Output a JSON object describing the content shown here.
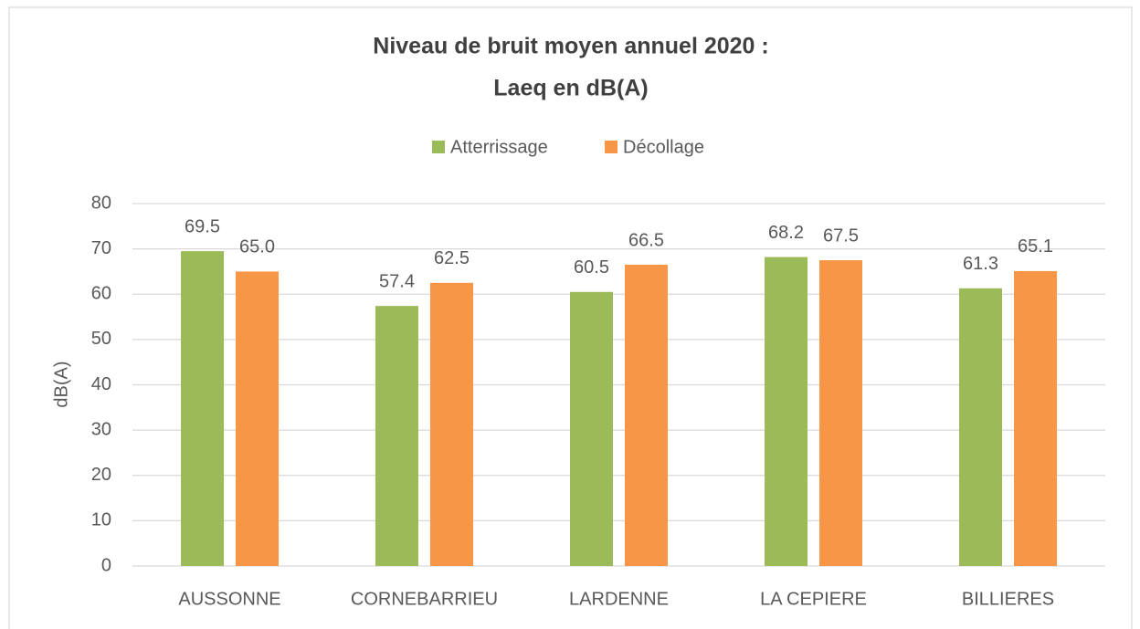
{
  "chart_data": {
    "type": "bar",
    "title": [
      "Niveau de bruit moyen annuel 2020 :",
      "Laeq en dB(A)"
    ],
    "y_label": "dB(A)",
    "categories": [
      "AUSSONNE",
      "CORNEBARRIEU",
      "LARDENNE",
      "LA CEPIERE",
      "BILLIERES"
    ],
    "series": [
      {
        "name": "Atterrissage",
        "color": "#9bbb59",
        "values": [
          69.5,
          57.4,
          60.5,
          68.2,
          61.3
        ],
        "value_labels": [
          "69.5",
          "57.4",
          "60.5",
          "68.2",
          "61.3"
        ]
      },
      {
        "name": "Décollage",
        "color": "#f79646",
        "values": [
          65.0,
          62.5,
          66.5,
          67.5,
          65.1
        ],
        "value_labels": [
          "65.0",
          "62.5",
          "66.5",
          "67.5",
          "65.1"
        ]
      }
    ],
    "ylim": [
      0,
      80
    ],
    "yticks": [
      0,
      10,
      20,
      30,
      40,
      50,
      60,
      70,
      80
    ],
    "grid": true,
    "legend": "top"
  }
}
